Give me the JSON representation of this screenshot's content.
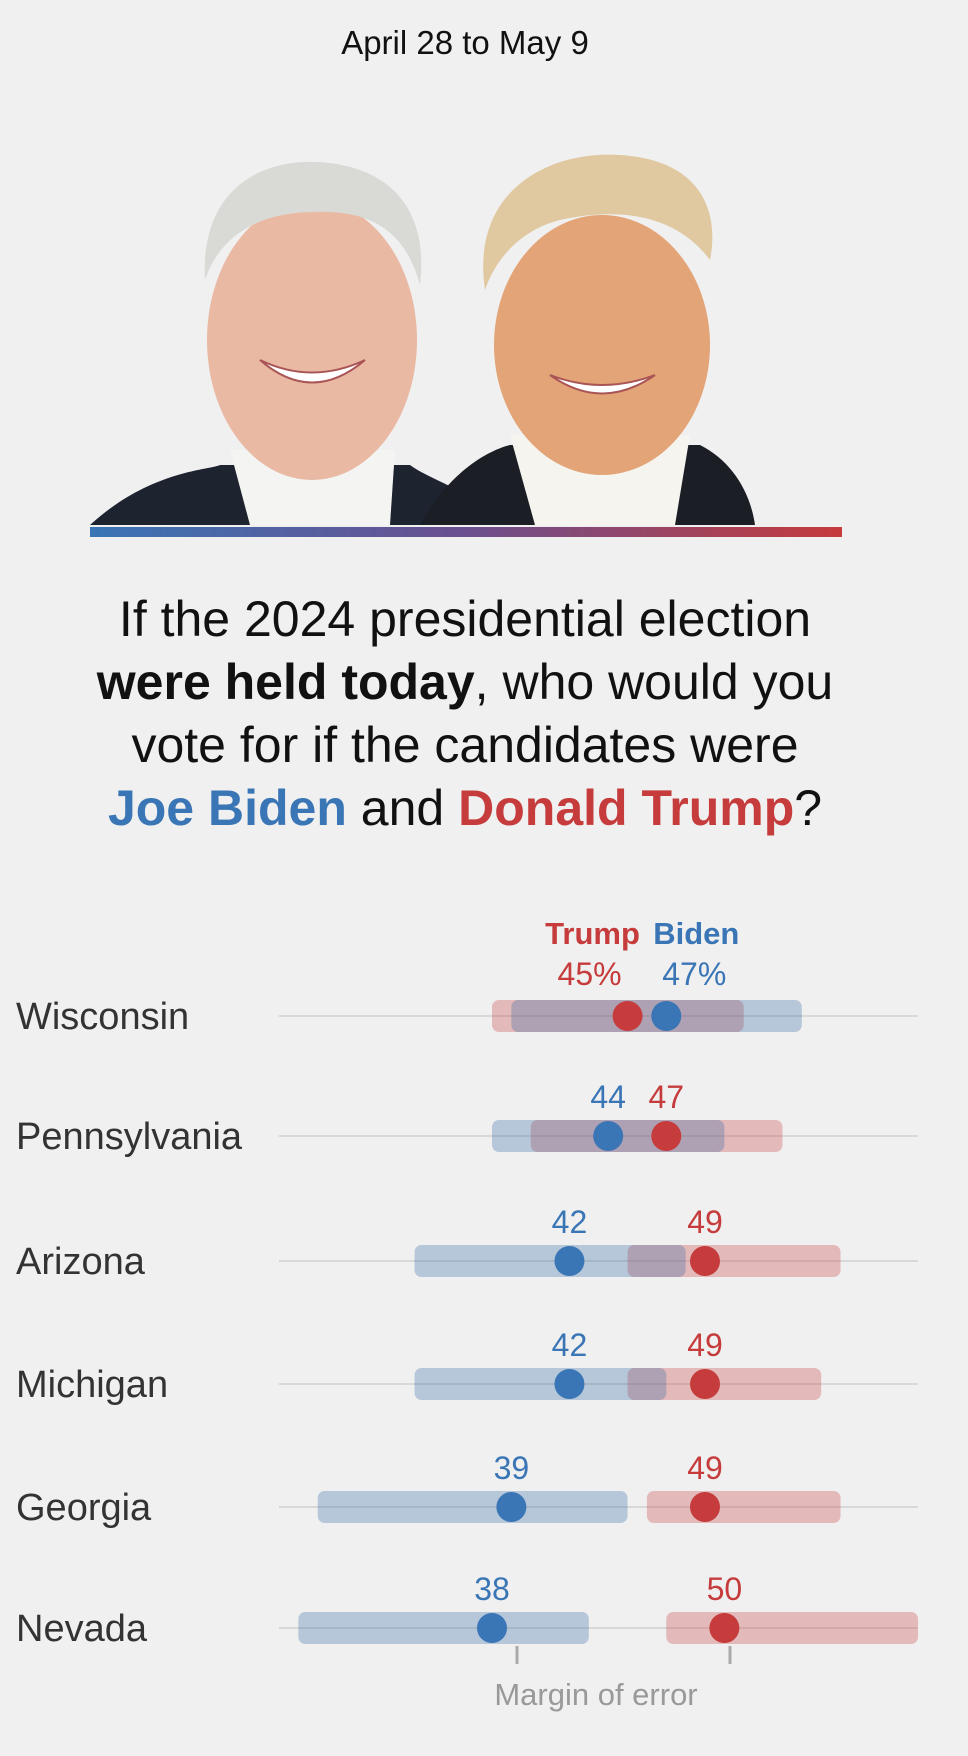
{
  "date_range": "April 28 to May 9",
  "question": {
    "line1": "If the 2024 presidential election",
    "bold": "were held today",
    "line2_rest": ", who would you",
    "line3": "vote for if the candidates were",
    "biden": "Joe Biden",
    "and": " and ",
    "trump": "Donald Trump",
    "end": "?"
  },
  "portrait": {
    "left_icon": "biden-portrait",
    "right_icon": "trump-portrait"
  },
  "colors": {
    "biden": "#3a75b5",
    "trump": "#c63b3b",
    "background": "#f0f0f0"
  },
  "chart_data": {
    "type": "dot-range",
    "legend": [
      "Trump",
      "Biden"
    ],
    "first_row_suffix": "%",
    "axis_label": "Margin of error",
    "xlim": [
      27,
      60
    ],
    "tick_values": [
      38,
      49
    ],
    "rows": [
      {
        "state": "Wisconsin",
        "biden": 47,
        "trump": 45,
        "biden_range": [
          39,
          54
        ],
        "trump_range": [
          38,
          51
        ]
      },
      {
        "state": "Pennsylvania",
        "biden": 44,
        "trump": 47,
        "biden_range": [
          38,
          50
        ],
        "trump_range": [
          40,
          53
        ]
      },
      {
        "state": "Arizona",
        "biden": 42,
        "trump": 49,
        "biden_range": [
          34,
          48
        ],
        "trump_range": [
          45,
          56
        ]
      },
      {
        "state": "Michigan",
        "biden": 42,
        "trump": 49,
        "biden_range": [
          34,
          47
        ],
        "trump_range": [
          45,
          55
        ]
      },
      {
        "state": "Georgia",
        "biden": 39,
        "trump": 49,
        "biden_range": [
          29,
          45
        ],
        "trump_range": [
          46,
          56
        ]
      },
      {
        "state": "Nevada",
        "biden": 38,
        "trump": 50,
        "biden_range": [
          28,
          43
        ],
        "trump_range": [
          47,
          60
        ]
      }
    ]
  }
}
